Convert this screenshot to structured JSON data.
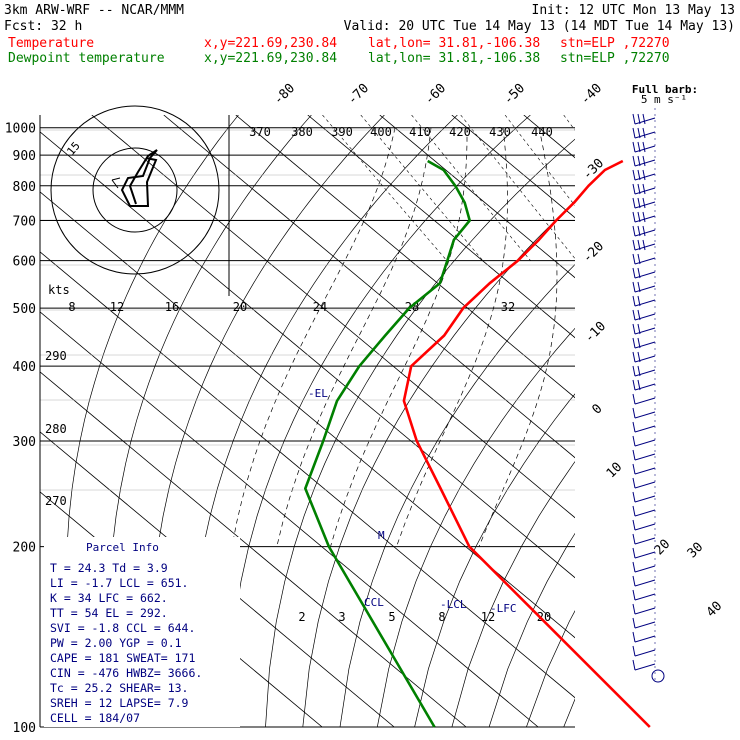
{
  "header": {
    "model": "3km ARW-WRF -- NCAR/MMM",
    "init": "Init: 12 UTC Mon 13 May 13",
    "fcst": "Fcst:    32 h",
    "valid": "Valid: 20 UTC Tue 14 May 13 (14 MDT Tue 14 May 13)",
    "legend": [
      {
        "name": "Temperature",
        "color": "#ff0000",
        "xy": "x,y=221.69,230.84",
        "latlon": "lat,lon= 31.81,-106.38",
        "stn": "stn=ELP ,72270"
      },
      {
        "name": "Dewpoint temperature",
        "color": "#008000",
        "xy": "x,y=221.69,230.84",
        "latlon": "lat,lon= 31.81,-106.38",
        "stn": "stn=ELP ,72270"
      }
    ],
    "barb_note": "Full barb:",
    "barb_note2": "5 m s⁻¹"
  },
  "chart_data": {
    "type": "line",
    "title": "",
    "xlabel": "",
    "ylabel": "",
    "pressure_ticks": [
      "100",
      "200",
      "300",
      "400",
      "500",
      "600",
      "700",
      "800",
      "900",
      "1000"
    ],
    "isotherm_labels": [
      "-80",
      "-70",
      "-60",
      "-50",
      "-40",
      "-30",
      "-20",
      "-10",
      "0",
      "10",
      "20",
      "30",
      "40"
    ],
    "theta_e_labels": [
      "370",
      "380",
      "390",
      "400",
      "410",
      "420",
      "430",
      "440"
    ],
    "adiabat_labels": [
      "290",
      "280",
      "270"
    ],
    "mixing_ratio_labels": [
      "2",
      "3",
      "5",
      "8",
      "12",
      "20"
    ],
    "hodo_speed_labels": [
      "8",
      "12",
      "16",
      "20",
      "24",
      "28",
      "32"
    ],
    "hodo_unit": "kts",
    "hodo_ring": "15",
    "series": [
      {
        "name": "Temperature",
        "color": "#ff0000",
        "x": [
          26.1,
          22.1,
          17.2,
          12.4,
          6.9,
          1.3,
          -5.1,
          -12.8,
          -20.6,
          -27.8,
          -37.5,
          -44.3,
          -49.2,
          -53.8,
          -59.5,
          -64.5
        ],
        "y": [
          880,
          850,
          800,
          750,
          700,
          650,
          600,
          550,
          500,
          450,
          400,
          350,
          300,
          250,
          200,
          100
        ]
      },
      {
        "name": "Dewpoint temperature",
        "color": "#008000",
        "x": [
          -1.0,
          -0.3,
          -1.3,
          -2.8,
          -5.1,
          -10.5,
          -14.9,
          -19.7,
          -28.1,
          -36.0,
          -44.7,
          -53.6,
          -62.2,
          -72.6,
          -79.0,
          -94.4
        ],
        "y": [
          880,
          850,
          800,
          750,
          700,
          650,
          600,
          550,
          500,
          450,
          400,
          350,
          300,
          250,
          200,
          100
        ]
      }
    ],
    "levels": [
      {
        "label": "M"
      },
      {
        "label": "CCL"
      },
      {
        "label": "LCL"
      },
      {
        "label": "LFC"
      },
      {
        "label": "EL"
      }
    ]
  },
  "parcel_info": {
    "title": "Parcel Info",
    "rows": [
      "T  =   24.3  Td =   3.9",
      "LI =   -1.7  LCL =  651.",
      "K  =     34  LFC =  662.",
      "TT =     54  EL  =  292.",
      "SVI =  -1.8  CCL =  644.",
      "PW =   2.00  YGP =   0.1",
      "CAPE =   181  SWEAT=  171",
      "CIN =  -476  HWBZ= 3666.",
      "Tc =   25.2  SHEAR=  13.",
      "SREH =   12  LAPSE=  7.9",
      "CELL = 184/07"
    ]
  }
}
